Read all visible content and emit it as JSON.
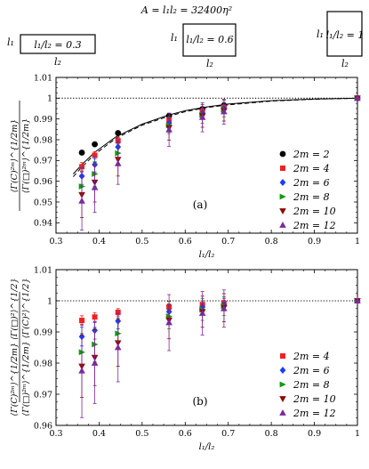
{
  "header": {
    "title": "A = l₁l₂ = 32400η²",
    "boxes": [
      {
        "side_label": "l₁",
        "box_label": "l₁/l₂ = 0.3",
        "bottom_label": "l₂"
      },
      {
        "side_label": "l₁",
        "box_label": "l₁/l₂ = 0.6",
        "bottom_label": "l₂"
      },
      {
        "side_label": "l₁",
        "box_label": "l₁/l₂ = 1",
        "bottom_label": "l₂"
      }
    ]
  },
  "chart_data": [
    {
      "type": "scatter",
      "panel_label": "(a)",
      "xlabel": "l₁/l₂",
      "ylabel_num": "⟨Γ(C)²ᵐ⟩^{1/2m}",
      "ylabel_den": "⟨Γ(□)²ᵐ⟩^{1/2m}",
      "xlim": [
        0.3,
        1.0
      ],
      "ylim": [
        0.935,
        1.01
      ],
      "x_ticks": [
        "0.3",
        "0.4",
        "0.5",
        "0.6",
        "0.7",
        "0.8",
        "0.9",
        "1"
      ],
      "y_ticks": [
        "0.94",
        "0.95",
        "0.96",
        "0.97",
        "0.98",
        "0.99",
        "1",
        "1.01"
      ],
      "reference_line": 1.0,
      "legend_position": "right",
      "x": [
        0.36,
        0.39,
        0.444,
        0.5625,
        0.64,
        0.69,
        1.0
      ],
      "series": [
        {
          "name": "2m = 2",
          "color": "#000000",
          "marker": "circle",
          "values": [
            0.9738,
            0.9778,
            0.9832,
            0.9915,
            0.9948,
            0.9965,
            1.0
          ],
          "err": [
            0.0008,
            0.0008,
            0.0006,
            0.0006,
            0.0006,
            0.0005,
            0
          ]
        },
        {
          "name": "2m = 4",
          "color": "#ee2222",
          "marker": "square",
          "values": [
            0.967,
            0.9725,
            0.9795,
            0.9895,
            0.9935,
            0.9955,
            1.0
          ],
          "err": [
            0.002,
            0.0018,
            0.0016,
            0.0014,
            0.0014,
            0.0012,
            0
          ]
        },
        {
          "name": "2m = 6",
          "color": "#1a3cff",
          "marker": "diamond",
          "values": [
            0.9625,
            0.968,
            0.9765,
            0.988,
            0.9928,
            0.995,
            1.0
          ],
          "err": [
            0.004,
            0.0035,
            0.003,
            0.0025,
            0.0025,
            0.002,
            0
          ]
        },
        {
          "name": "2m = 8",
          "color": "#129a12",
          "marker": "triangle-right",
          "values": [
            0.9575,
            0.9635,
            0.9735,
            0.987,
            0.992,
            0.9945,
            1.0
          ],
          "err": [
            0.007,
            0.006,
            0.005,
            0.004,
            0.004,
            0.0035,
            0
          ]
        },
        {
          "name": "2m = 10",
          "color": "#8b0a0a",
          "marker": "triangle-down",
          "values": [
            0.9535,
            0.9595,
            0.9705,
            0.9858,
            0.9915,
            0.994,
            1.0
          ],
          "err": [
            0.011,
            0.0095,
            0.008,
            0.006,
            0.0055,
            0.005,
            0
          ]
        },
        {
          "name": "2m = 12",
          "color": "#7a2a9e",
          "marker": "triangle-up",
          "values": [
            0.9505,
            0.957,
            0.9685,
            0.9848,
            0.9908,
            0.9935,
            1.0
          ],
          "err": [
            0.014,
            0.012,
            0.01,
            0.008,
            0.007,
            0.006,
            0
          ]
        }
      ],
      "curves": [
        {
          "style": "solid",
          "x": [
            0.34,
            0.36,
            0.39,
            0.44,
            0.5,
            0.56,
            0.6,
            0.65,
            0.7,
            0.8,
            0.9,
            1.0
          ],
          "y": [
            0.9635,
            0.968,
            0.974,
            0.9815,
            0.9875,
            0.9918,
            0.994,
            0.9958,
            0.9972,
            0.9988,
            0.9996,
            1.0
          ]
        },
        {
          "style": "dashed",
          "x": [
            0.34,
            0.36,
            0.39,
            0.44,
            0.5,
            0.56,
            0.6,
            0.65,
            0.7,
            0.8,
            0.9,
            1.0
          ],
          "y": [
            0.9622,
            0.9668,
            0.973,
            0.9808,
            0.987,
            0.9912,
            0.9935,
            0.9955,
            0.9968,
            0.9986,
            0.9995,
            1.0
          ]
        }
      ]
    },
    {
      "type": "scatter",
      "panel_label": "(b)",
      "xlabel": "l₁/l₂",
      "ylabel_num": "⟨Γ(C)²ᵐ⟩^{1/2m}  ⟨Γ(□)²⟩^{1/2}",
      "ylabel_den": "⟨Γ(□)²ᵐ⟩^{1/2m}  ⟨Γ(C)²⟩^{1/2}",
      "xlim": [
        0.3,
        1.0
      ],
      "ylim": [
        0.96,
        1.01
      ],
      "x_ticks": [
        "0.3",
        "0.4",
        "0.5",
        "0.6",
        "0.7",
        "0.8",
        "0.9",
        "1"
      ],
      "y_ticks": [
        "0.96",
        "0.97",
        "0.98",
        "0.99",
        "1",
        "1.01"
      ],
      "reference_line": 1.0,
      "legend_position": "right",
      "x": [
        0.36,
        0.39,
        0.444,
        0.5625,
        0.64,
        0.69,
        1.0
      ],
      "series": [
        {
          "name": "2m = 4",
          "color": "#ee2222",
          "marker": "square",
          "values": [
            0.9937,
            0.9948,
            0.9963,
            0.998,
            0.9988,
            0.9992,
            1.0
          ],
          "err": [
            0.0015,
            0.0014,
            0.0012,
            0.001,
            0.0012,
            0.001,
            0
          ]
        },
        {
          "name": "2m = 6",
          "color": "#1a3cff",
          "marker": "diamond",
          "values": [
            0.9885,
            0.9905,
            0.9935,
            0.9965,
            0.998,
            0.9988,
            1.0
          ],
          "err": [
            0.003,
            0.0028,
            0.0025,
            0.002,
            0.002,
            0.002,
            0
          ]
        },
        {
          "name": "2m = 8",
          "color": "#129a12",
          "marker": "triangle-right",
          "values": [
            0.9835,
            0.986,
            0.9895,
            0.995,
            0.9972,
            0.9983,
            1.0
          ],
          "err": [
            0.006,
            0.0055,
            0.005,
            0.004,
            0.0035,
            0.003,
            0
          ]
        },
        {
          "name": "2m = 10",
          "color": "#8b0a0a",
          "marker": "triangle-down",
          "values": [
            0.979,
            0.9818,
            0.9865,
            0.9938,
            0.9965,
            0.9978,
            1.0
          ],
          "err": [
            0.01,
            0.009,
            0.0075,
            0.006,
            0.005,
            0.0045,
            0
          ]
        },
        {
          "name": "2m = 12",
          "color": "#7a2a9e",
          "marker": "triangle-up",
          "values": [
            0.9775,
            0.98,
            0.985,
            0.993,
            0.996,
            0.9975,
            1.0
          ],
          "err": [
            0.015,
            0.013,
            0.011,
            0.009,
            0.007,
            0.006,
            0
          ]
        }
      ]
    }
  ]
}
